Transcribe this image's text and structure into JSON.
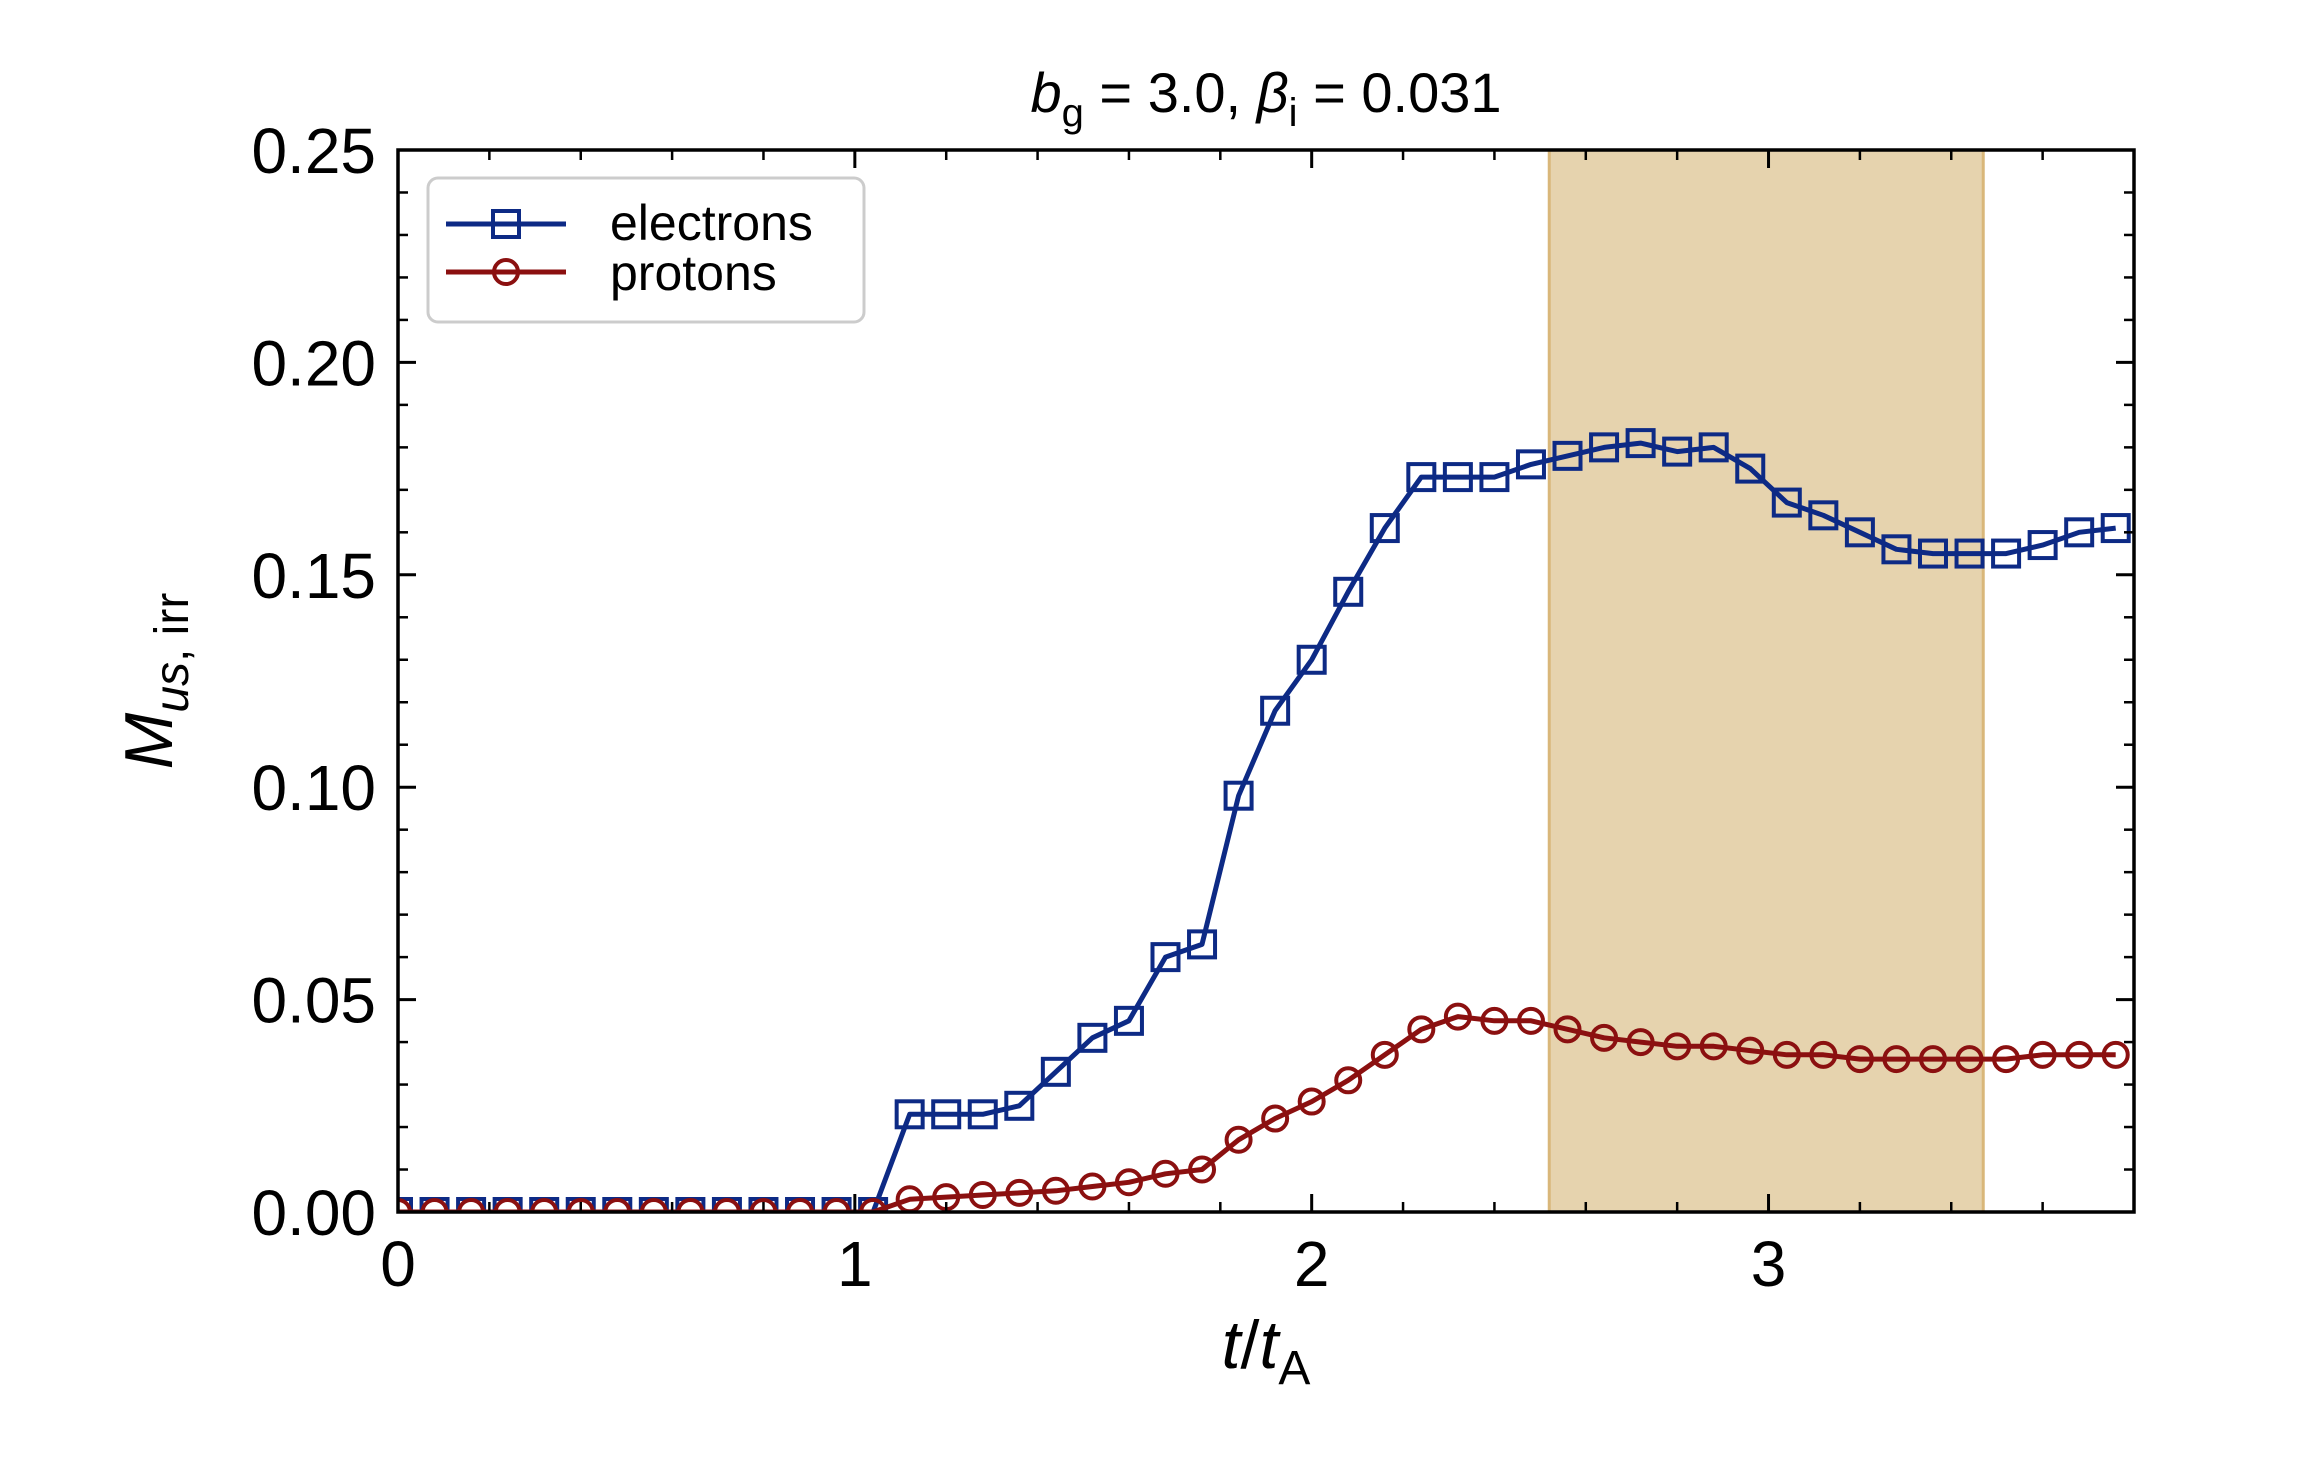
{
  "chart_data": {
    "type": "line",
    "title": {
      "b_symbol": "b",
      "b_sub": "g",
      "b_value": " = 3.0, ",
      "beta_symbol": "β",
      "beta_sub": "i",
      "beta_value": " = 0.031"
    },
    "xlabel": {
      "t": "t",
      "slash": "/",
      "tA": "t",
      "tA_sub": "A"
    },
    "ylabel": {
      "M": "M",
      "sub_italic": "us",
      "sub_rest": ", irr"
    },
    "xlim": [
      0,
      3.8
    ],
    "ylim": [
      0,
      0.25
    ],
    "xticks": [
      0,
      1,
      2,
      3
    ],
    "xtick_labels": [
      "0",
      "1",
      "2",
      "3"
    ],
    "yticks": [
      0.0,
      0.05,
      0.1,
      0.15,
      0.2,
      0.25
    ],
    "ytick_labels": [
      "0.00",
      "0.05",
      "0.10",
      "0.15",
      "0.20",
      "0.25"
    ],
    "x_minor_step": 0.2,
    "y_minor_step": 0.01,
    "grid": false,
    "legend_position": "top-left",
    "shaded_region": {
      "x0": 2.52,
      "x1": 3.47,
      "color": "#e6d3ae",
      "edge_color": "#d9b77a"
    },
    "series": [
      {
        "name": "electrons",
        "color": "#0d2a85",
        "marker": "square",
        "x": [
          0.0,
          0.08,
          0.16,
          0.24,
          0.32,
          0.4,
          0.48,
          0.56,
          0.64,
          0.72,
          0.8,
          0.88,
          0.96,
          1.04,
          1.12,
          1.2,
          1.28,
          1.36,
          1.44,
          1.52,
          1.6,
          1.68,
          1.76,
          1.84,
          1.92,
          2.0,
          2.08,
          2.16,
          2.24,
          2.32,
          2.4,
          2.48,
          2.56,
          2.64,
          2.72,
          2.8,
          2.88,
          2.96,
          3.04,
          3.12,
          3.2,
          3.28,
          3.36,
          3.44,
          3.52,
          3.6,
          3.68,
          3.76
        ],
        "y": [
          0.0,
          0.0,
          0.0,
          0.0,
          0.0,
          0.0,
          0.0,
          0.0,
          0.0,
          0.0,
          0.0,
          0.0,
          0.0,
          0.0,
          0.023,
          0.023,
          0.023,
          0.025,
          0.033,
          0.041,
          0.045,
          0.06,
          0.063,
          0.098,
          0.118,
          0.13,
          0.146,
          0.161,
          0.173,
          0.173,
          0.173,
          0.176,
          0.178,
          0.18,
          0.181,
          0.179,
          0.18,
          0.175,
          0.167,
          0.164,
          0.16,
          0.156,
          0.155,
          0.155,
          0.155,
          0.157,
          0.16,
          0.161
        ]
      },
      {
        "name": "protons",
        "color": "#8b1010",
        "marker": "circle",
        "x": [
          0.0,
          0.08,
          0.16,
          0.24,
          0.32,
          0.4,
          0.48,
          0.56,
          0.64,
          0.72,
          0.8,
          0.88,
          0.96,
          1.04,
          1.12,
          1.2,
          1.28,
          1.36,
          1.44,
          1.52,
          1.6,
          1.68,
          1.76,
          1.84,
          1.92,
          2.0,
          2.08,
          2.16,
          2.24,
          2.32,
          2.4,
          2.48,
          2.56,
          2.64,
          2.72,
          2.8,
          2.88,
          2.96,
          3.04,
          3.12,
          3.2,
          3.28,
          3.36,
          3.44,
          3.52,
          3.6,
          3.68,
          3.76
        ],
        "y": [
          0.0,
          0.0,
          0.0,
          0.0,
          0.0,
          0.0,
          0.0,
          0.0,
          0.0,
          0.0,
          0.0,
          0.0,
          0.0,
          0.0,
          0.003,
          0.0035,
          0.004,
          0.0045,
          0.005,
          0.006,
          0.007,
          0.009,
          0.01,
          0.017,
          0.022,
          0.026,
          0.031,
          0.037,
          0.043,
          0.046,
          0.045,
          0.045,
          0.043,
          0.041,
          0.04,
          0.039,
          0.039,
          0.038,
          0.037,
          0.037,
          0.036,
          0.036,
          0.036,
          0.036,
          0.036,
          0.037,
          0.037,
          0.037
        ]
      }
    ]
  }
}
